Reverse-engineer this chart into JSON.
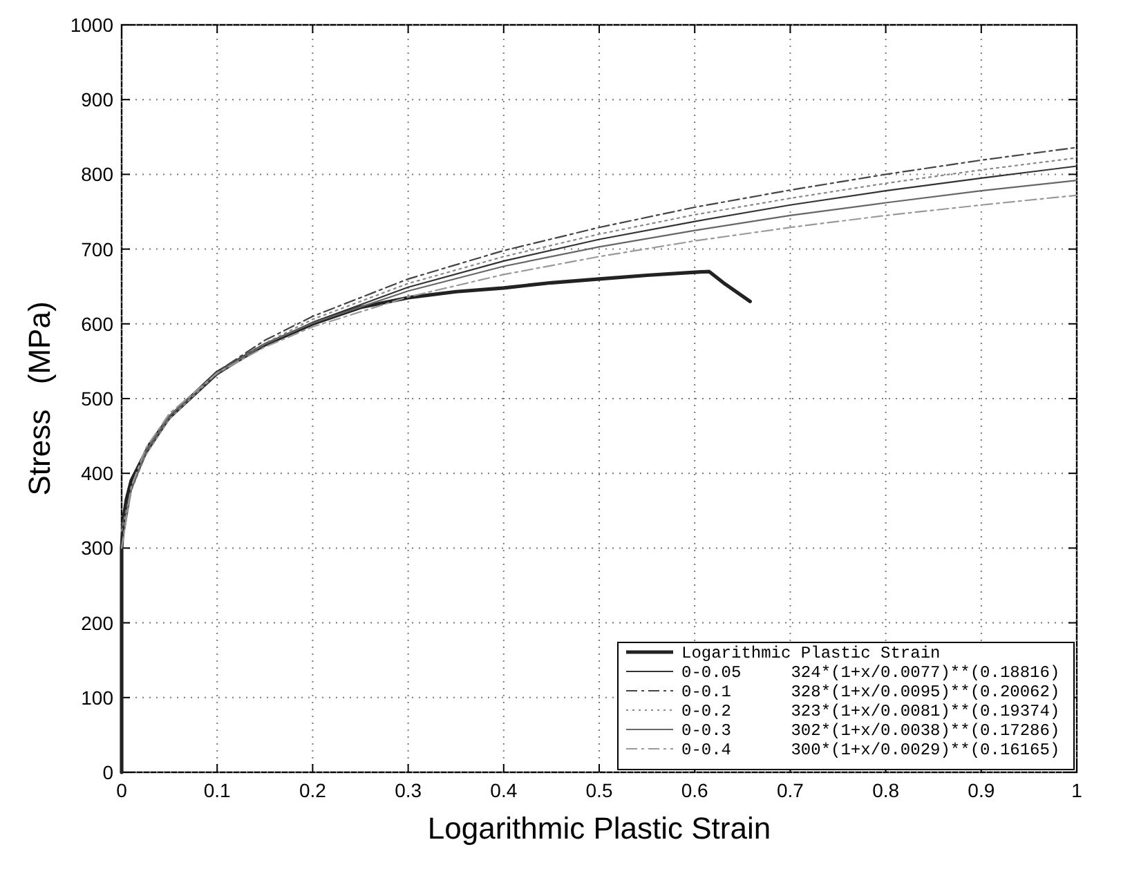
{
  "chart_data": {
    "type": "line",
    "xlabel": "Logarithmic Plastic Strain",
    "ylabel": "Stress   (MPa)",
    "xlim": [
      0,
      1
    ],
    "ylim": [
      0,
      1000
    ],
    "xticks": [
      0,
      0.1,
      0.2,
      0.3,
      0.4,
      0.5,
      0.6,
      0.7,
      0.8,
      0.9,
      1
    ],
    "yticks": [
      0,
      100,
      200,
      300,
      400,
      500,
      600,
      700,
      800,
      900,
      1000
    ],
    "grid": true,
    "legend": "bottom right",
    "marker": "none",
    "series": [
      {
        "name": "Logarithmic Plastic Strain",
        "color": "#222222",
        "line_style": "solid",
        "x": [
          0,
          0,
          0.002,
          0.005,
          0.01,
          0.02,
          0.03,
          0.05,
          0.075,
          0.1,
          0.15,
          0.2,
          0.25,
          0.3,
          0.35,
          0.4,
          0.45,
          0.5,
          0.55,
          0.6,
          0.615,
          0.63,
          0.658
        ],
        "values": [
          0,
          300,
          340,
          365,
          390,
          415,
          440,
          475,
          505,
          535,
          572,
          600,
          622,
          635,
          643,
          648,
          655,
          660,
          665,
          669,
          670,
          655,
          630
        ]
      },
      {
        "name": "0-0.05     324*(1+x/0.0077)**(0.18816)",
        "color": "#333333",
        "line_style": "solid",
        "x": [
          0,
          0.01,
          0.025,
          0.05,
          0.1,
          0.15,
          0.2,
          0.3,
          0.4,
          0.5,
          0.6,
          0.7,
          0.8,
          0.9,
          1
        ],
        "values": [
          324,
          379,
          425,
          473,
          532,
          572,
          602,
          649,
          684,
          713,
          737,
          759,
          778,
          795,
          811
        ]
      },
      {
        "name": "0-0.1      328*(1+x/0.0095)**(0.20062)",
        "color": "#444444",
        "line_style": "dashed",
        "x": [
          0,
          0.01,
          0.025,
          0.05,
          0.1,
          0.15,
          0.2,
          0.3,
          0.4,
          0.5,
          0.6,
          0.7,
          0.8,
          0.9,
          1
        ],
        "values": [
          328,
          379,
          425,
          474,
          536,
          578,
          610,
          660,
          698,
          729,
          756,
          779,
          800,
          819,
          836
        ]
      },
      {
        "name": "0-0.2      323*(1+x/0.0081)**(0.19374)",
        "color": "#888888",
        "line_style": "dotted",
        "x": [
          0,
          0.01,
          0.025,
          0.05,
          0.1,
          0.15,
          0.2,
          0.3,
          0.4,
          0.5,
          0.6,
          0.7,
          0.8,
          0.9,
          1
        ],
        "values": [
          323,
          377,
          424,
          473,
          534,
          574,
          606,
          654,
          690,
          720,
          746,
          768,
          788,
          806,
          822
        ]
      },
      {
        "name": "0-0.3      302*(1+x/0.0038)**(0.17286)",
        "color": "#666666",
        "line_style": "solid",
        "x": [
          0,
          0.01,
          0.025,
          0.05,
          0.1,
          0.15,
          0.2,
          0.3,
          0.4,
          0.5,
          0.6,
          0.7,
          0.8,
          0.9,
          1
        ],
        "values": [
          302,
          377,
          429,
          477,
          535,
          573,
          601,
          644,
          677,
          703,
          725,
          745,
          762,
          778,
          792
        ]
      },
      {
        "name": "0-0.4      300*(1+x/0.0029)**(0.16165)",
        "color": "#999999",
        "line_style": "dashed",
        "x": [
          0,
          0.01,
          0.025,
          0.05,
          0.1,
          0.15,
          0.2,
          0.3,
          0.4,
          0.5,
          0.6,
          0.7,
          0.8,
          0.9,
          1
        ],
        "values": [
          300,
          382,
          433,
          480,
          534,
          569,
          596,
          636,
          666,
          690,
          711,
          729,
          745,
          759,
          772
        ]
      }
    ]
  }
}
